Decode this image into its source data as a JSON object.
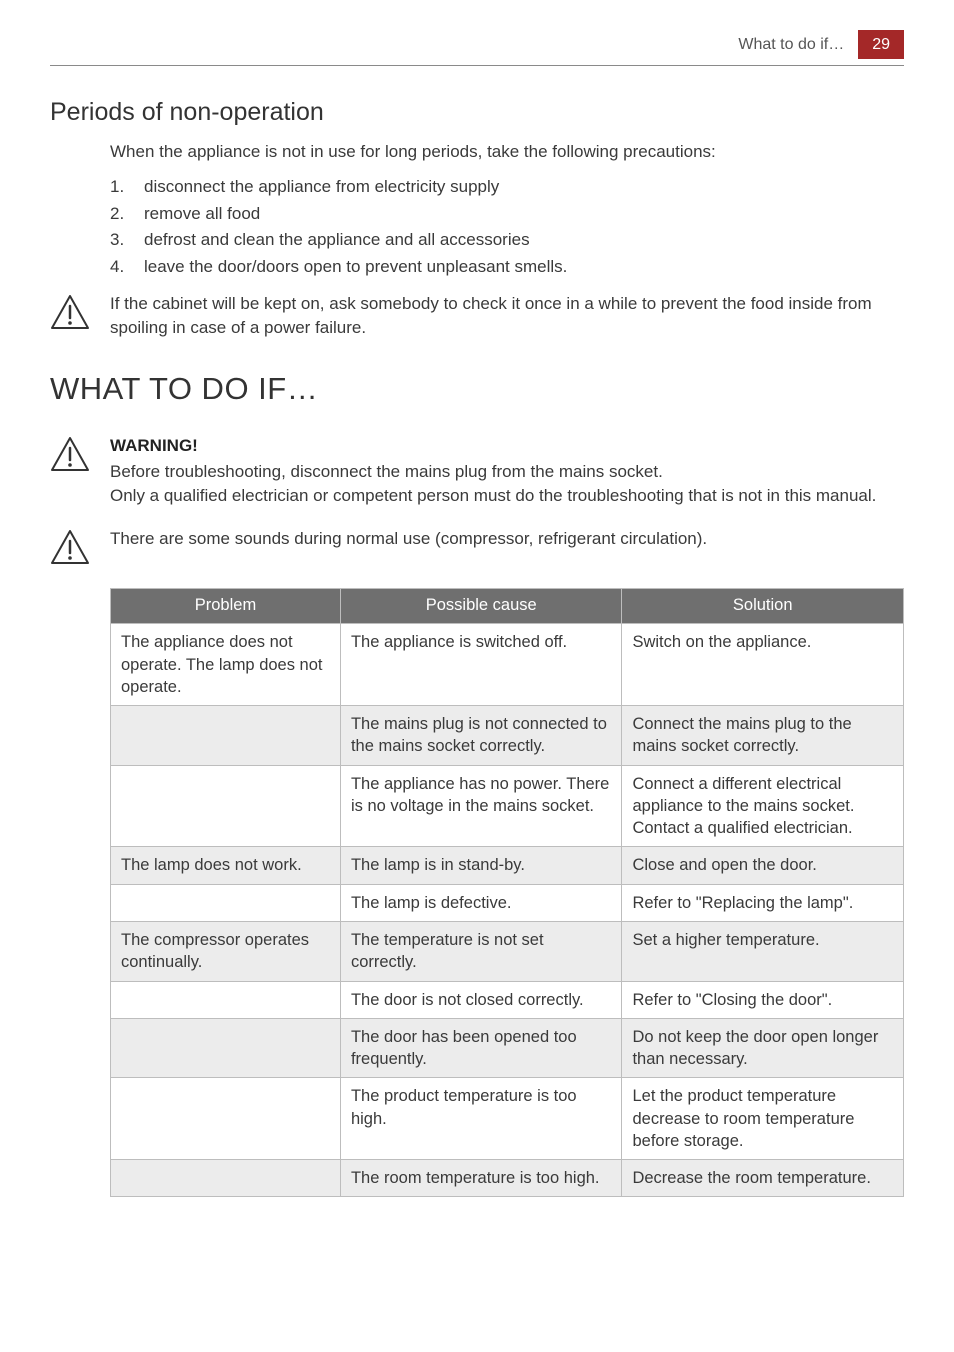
{
  "header": {
    "section_title": "What to do if…",
    "page_number": "29"
  },
  "non_operation": {
    "heading": "Periods of non-operation",
    "intro": "When the appliance is not in use for long periods, take the following precautions:",
    "steps": [
      "disconnect the appliance from electricity supply",
      "remove all food",
      "defrost and clean the appliance and all accessories",
      "leave the door/doors open to prevent unpleasant smells."
    ],
    "note": "If the cabinet will be kept on, ask somebody to check it once in a while to prevent the food inside from spoiling in case of a power failure."
  },
  "what_to_do": {
    "heading": "WHAT TO DO IF…",
    "warning_label": "WARNING!",
    "warning_body_1": "Before troubleshooting, disconnect the mains plug from the mains socket.",
    "warning_body_2": "Only a qualified electrician or competent person must do the troubleshooting that is not in this manual.",
    "sounds_note": "There are some sounds during normal use (compressor, refrigerant circulation)."
  },
  "table": {
    "columns": [
      "Problem",
      "Possible cause",
      "Solution"
    ],
    "header_bg": "#6f6f6f",
    "header_color": "#ffffff",
    "border_color": "#bdbdbd",
    "shade_bg": "#ececec",
    "plain_bg": "#ffffff",
    "rows": [
      {
        "shade": false,
        "cells": [
          "The appliance does not operate. The lamp does not operate.",
          "The appliance is switched off.",
          "Switch on the appliance."
        ]
      },
      {
        "shade": true,
        "cells": [
          "",
          "The mains plug is not connected to the mains socket correctly.",
          "Connect the mains plug to the mains socket correctly."
        ]
      },
      {
        "shade": false,
        "cells": [
          "",
          "The appliance has no power. There is no voltage in the mains socket.",
          "Connect a different electrical appliance to the mains socket. Contact a qualified electrician."
        ]
      },
      {
        "shade": true,
        "cells": [
          "The lamp does not work.",
          "The lamp is in stand-by.",
          "Close and open the door."
        ]
      },
      {
        "shade": false,
        "cells": [
          "",
          "The lamp is defective.",
          "Refer to \"Replacing the lamp\"."
        ]
      },
      {
        "shade": true,
        "cells": [
          "The compressor operates continually.",
          "The temperature is not set correctly.",
          "Set a higher temperature."
        ]
      },
      {
        "shade": false,
        "cells": [
          "",
          "The door is not closed correctly.",
          "Refer to \"Closing the door\"."
        ]
      },
      {
        "shade": true,
        "cells": [
          "",
          "The door has been opened too frequently.",
          "Do not keep the door open longer than necessary."
        ]
      },
      {
        "shade": false,
        "cells": [
          "",
          "The product temperature is too high.",
          "Let the product temperature decrease to room temperature before storage."
        ]
      },
      {
        "shade": true,
        "cells": [
          "",
          "The room temperature is too high.",
          "Decrease the room temperature."
        ]
      }
    ]
  },
  "icons": {
    "warning": "warning-triangle-icon"
  }
}
